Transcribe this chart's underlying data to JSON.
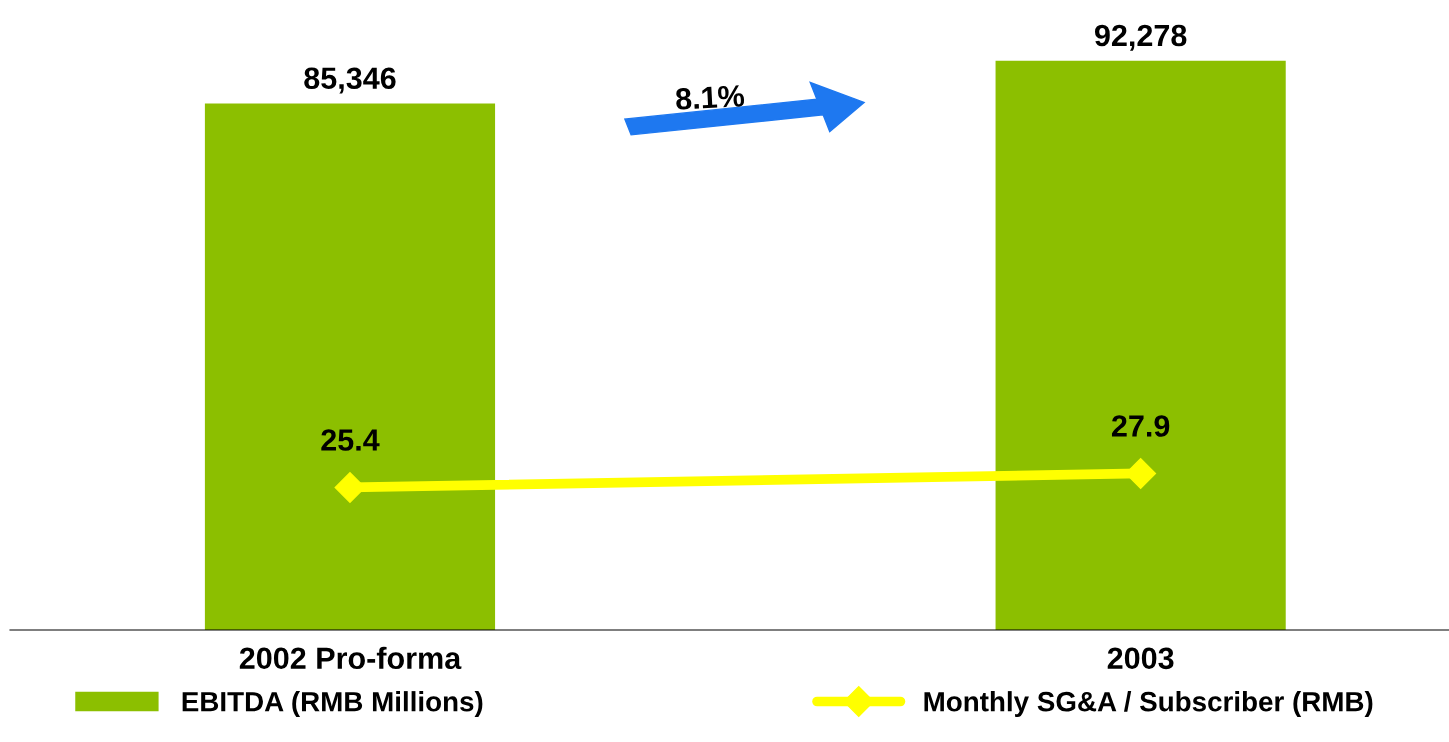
{
  "chart_data": {
    "type": "bar",
    "categories": [
      "2002 Pro-forma",
      "2003"
    ],
    "series": [
      {
        "name": "EBITDA (RMB Millions)",
        "color": "#8cbf00",
        "values": [
          85346,
          92278
        ],
        "value_labels": [
          "85,346",
          "92,278"
        ]
      },
      {
        "name": "Monthly SG&A / Subscriber (RMB)",
        "type": "line",
        "axis": "y2",
        "color": "#ffff00",
        "values": [
          25.4,
          27.9
        ]
      }
    ],
    "data_labels": true,
    "tick_labels": "x",
    "legend": "bottom",
    "marker": "diamond",
    "annotations": [
      "8.1%"
    ]
  }
}
